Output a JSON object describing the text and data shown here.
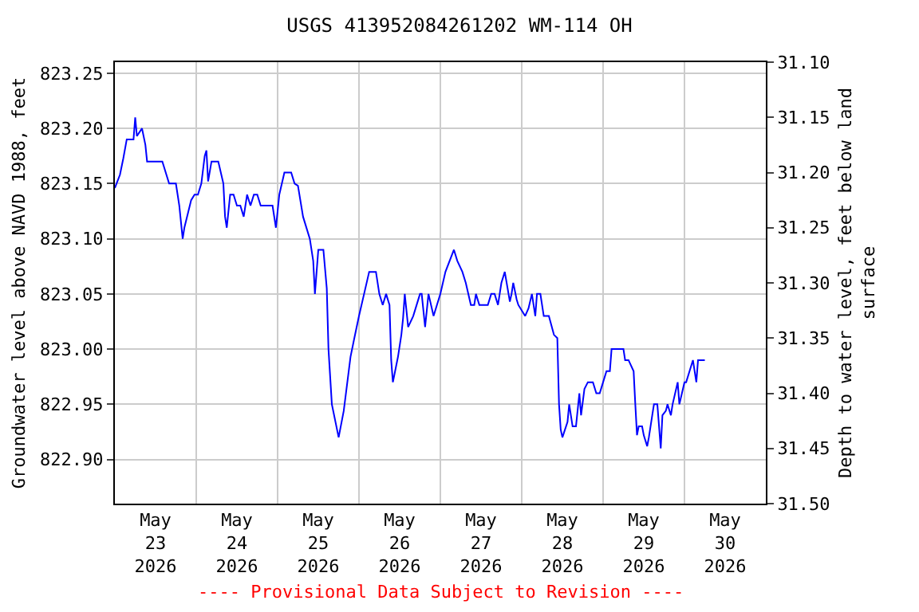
{
  "chart_data": {
    "type": "line",
    "title": "USGS 413952084261202 WM-114 OH",
    "ylabel": "Groundwater level above NAVD 1988, feet",
    "y2label": "Depth to water level, feet below land\nsurface",
    "annotations": [
      "---- Provisional Data Subject to Revision ----"
    ],
    "xlim": [
      "2026-05-23",
      "2026-05-31"
    ],
    "xticks": [
      {
        "value": "2026-05-23T12:00",
        "label": "May\n23\n2026"
      },
      {
        "value": "2026-05-24T12:00",
        "label": "May\n24\n2026"
      },
      {
        "value": "2026-05-25T12:00",
        "label": "May\n25\n2026"
      },
      {
        "value": "2026-05-26T12:00",
        "label": "May\n26\n2026"
      },
      {
        "value": "2026-05-27T12:00",
        "label": "May\n27\n2026"
      },
      {
        "value": "2026-05-28T12:00",
        "label": "May\n28\n2026"
      },
      {
        "value": "2026-05-29T12:00",
        "label": "May\n29\n2026"
      },
      {
        "value": "2026-05-30T12:00",
        "label": "May\n30\n2026"
      },
      {
        "value": "2026-05-24",
        "label": null
      },
      {
        "value": "2026-05-25",
        "label": null
      },
      {
        "value": "2026-05-26",
        "label": null
      },
      {
        "value": "2026-05-27",
        "label": null
      },
      {
        "value": "2026-05-28",
        "label": null
      },
      {
        "value": "2026-05-29",
        "label": null
      },
      {
        "value": "2026-05-30",
        "label": null
      }
    ],
    "ylim": [
      822.86,
      823.26
    ],
    "yticks": [
      {
        "value": 822.9,
        "label": "822.90"
      },
      {
        "value": 822.95,
        "label": "822.95"
      },
      {
        "value": 823.0,
        "label": "823.00"
      },
      {
        "value": 823.05,
        "label": "823.05"
      },
      {
        "value": 823.1,
        "label": "823.10"
      },
      {
        "value": 823.15,
        "label": "823.15"
      },
      {
        "value": 823.2,
        "label": "823.20"
      },
      {
        "value": 823.25,
        "label": "823.25"
      }
    ],
    "y2lim": [
      31.5,
      31.1
    ],
    "y2ticks": [
      {
        "value": 31.1,
        "label": "31.10"
      },
      {
        "value": 31.15,
        "label": "31.15"
      },
      {
        "value": 31.2,
        "label": "31.20"
      },
      {
        "value": 31.25,
        "label": "31.25"
      },
      {
        "value": 31.3,
        "label": "31.30"
      },
      {
        "value": 31.35,
        "label": "31.35"
      },
      {
        "value": 31.4,
        "label": "31.40"
      },
      {
        "value": 31.45,
        "label": "31.45"
      },
      {
        "value": 31.5,
        "label": "31.50"
      }
    ],
    "grid": true,
    "series": [
      {
        "color": "#0000ff",
        "x": [
          "2026-05-23T00:00",
          "2026-05-23T01:30",
          "2026-05-23T02:30",
          "2026-05-23T03:30",
          "2026-05-23T05:00",
          "2026-05-23T05:30",
          "2026-05-23T06:00",
          "2026-05-23T06:30",
          "2026-05-23T08:00",
          "2026-05-23T09:00",
          "2026-05-23T09:30",
          "2026-05-23T14:00",
          "2026-05-23T16:00",
          "2026-05-23T18:00",
          "2026-05-23T19:00",
          "2026-05-23T20:00",
          "2026-05-23T20:30",
          "2026-05-23T22:30",
          "2026-05-23T23:30",
          "2026-05-24T00:30",
          "2026-05-24T01:30",
          "2026-05-24T02:30",
          "2026-05-24T03:00",
          "2026-05-24T03:30",
          "2026-05-24T04:30",
          "2026-05-24T06:30",
          "2026-05-24T08:00",
          "2026-05-24T08:30",
          "2026-05-24T09:00",
          "2026-05-24T10:00",
          "2026-05-24T11:00",
          "2026-05-24T12:00",
          "2026-05-24T13:00",
          "2026-05-24T14:00",
          "2026-05-24T15:00",
          "2026-05-24T16:00",
          "2026-05-24T17:00",
          "2026-05-24T18:00",
          "2026-05-24T19:00",
          "2026-05-24T22:30",
          "2026-05-24T23:30",
          "2026-05-25T00:30",
          "2026-05-25T02:00",
          "2026-05-25T04:00",
          "2026-05-25T05:00",
          "2026-05-25T06:00",
          "2026-05-25T07:30",
          "2026-05-25T09:30",
          "2026-05-25T10:30",
          "2026-05-25T11:00",
          "2026-05-25T12:00",
          "2026-05-25T13:30",
          "2026-05-25T14:30",
          "2026-05-25T15:00",
          "2026-05-25T16:00",
          "2026-05-25T18:00",
          "2026-05-25T19:30",
          "2026-05-25T21:30",
          "2026-05-25T22:30",
          "2026-05-26T00:00",
          "2026-05-26T01:30",
          "2026-05-26T03:00",
          "2026-05-26T05:00",
          "2026-05-26T06:00",
          "2026-05-26T07:00",
          "2026-05-26T08:00",
          "2026-05-26T09:00",
          "2026-05-26T09:30",
          "2026-05-26T10:00",
          "2026-05-26T11:30",
          "2026-05-26T12:30",
          "2026-05-26T13:00",
          "2026-05-26T13:30",
          "2026-05-26T14:30",
          "2026-05-26T16:00",
          "2026-05-26T18:00",
          "2026-05-26T18:30",
          "2026-05-26T19:30",
          "2026-05-26T20:30",
          "2026-05-26T22:00",
          "2026-05-27T00:00",
          "2026-05-27T01:30",
          "2026-05-27T04:00",
          "2026-05-27T05:00",
          "2026-05-27T06:30",
          "2026-05-27T07:30",
          "2026-05-27T09:00",
          "2026-05-27T10:00",
          "2026-05-27T10:30",
          "2026-05-27T11:30",
          "2026-05-27T14:00",
          "2026-05-27T15:00",
          "2026-05-27T16:00",
          "2026-05-27T17:00",
          "2026-05-27T18:00",
          "2026-05-27T19:00",
          "2026-05-27T20:30",
          "2026-05-27T21:00",
          "2026-05-27T21:30",
          "2026-05-27T22:30",
          "2026-05-27T23:00",
          "2026-05-28T01:00",
          "2026-05-28T02:00",
          "2026-05-28T03:00",
          "2026-05-28T04:00",
          "2026-05-28T04:30",
          "2026-05-28T05:30",
          "2026-05-28T06:30",
          "2026-05-28T08:00",
          "2026-05-28T09:30",
          "2026-05-28T10:30",
          "2026-05-28T11:00",
          "2026-05-28T11:30",
          "2026-05-28T12:00",
          "2026-05-28T13:30",
          "2026-05-28T14:00",
          "2026-05-28T15:00",
          "2026-05-28T16:00",
          "2026-05-28T17:00",
          "2026-05-28T17:30",
          "2026-05-28T18:30",
          "2026-05-28T19:30",
          "2026-05-28T21:00",
          "2026-05-28T22:00",
          "2026-05-28T23:00",
          "2026-05-29T00:00",
          "2026-05-29T01:00",
          "2026-05-29T02:00",
          "2026-05-29T02:30",
          "2026-05-29T03:00",
          "2026-05-29T04:00",
          "2026-05-29T06:00",
          "2026-05-29T06:30",
          "2026-05-29T07:30",
          "2026-05-29T09:00",
          "2026-05-29T09:30",
          "2026-05-29T10:00",
          "2026-05-29T10:30",
          "2026-05-29T11:30",
          "2026-05-29T12:00",
          "2026-05-29T13:00",
          "2026-05-29T13:30",
          "2026-05-29T14:30",
          "2026-05-29T15:00",
          "2026-05-29T16:00",
          "2026-05-29T17:00",
          "2026-05-29T17:30",
          "2026-05-29T18:30",
          "2026-05-29T19:00",
          "2026-05-29T20:00",
          "2026-05-29T20:30",
          "2026-05-29T22:00",
          "2026-05-29T22:30",
          "2026-05-30T00:00",
          "2026-05-30T00:30",
          "2026-05-30T01:30",
          "2026-05-30T02:30",
          "2026-05-30T03:30",
          "2026-05-30T04:00",
          "2026-05-30T05:00",
          "2026-05-30T06:00"
        ],
        "values": [
          823.146,
          823.158,
          823.173,
          823.19,
          823.19,
          823.19,
          823.21,
          823.193,
          823.2,
          823.185,
          823.17,
          823.17,
          823.15,
          823.15,
          823.13,
          823.1,
          823.11,
          823.135,
          823.14,
          823.14,
          823.15,
          823.175,
          823.18,
          823.152,
          823.17,
          823.17,
          823.15,
          823.12,
          823.11,
          823.14,
          823.14,
          823.13,
          823.13,
          823.12,
          823.14,
          823.13,
          823.14,
          823.14,
          823.13,
          823.13,
          823.11,
          823.14,
          823.16,
          823.16,
          823.15,
          823.148,
          823.12,
          823.1,
          823.08,
          823.05,
          823.09,
          823.09,
          823.055,
          823.0,
          822.95,
          822.92,
          822.944,
          822.993,
          823.008,
          823.03,
          823.05,
          823.07,
          823.07,
          823.05,
          823.04,
          823.05,
          823.04,
          822.99,
          822.97,
          822.993,
          823.013,
          823.028,
          823.05,
          823.02,
          823.03,
          823.05,
          823.05,
          823.02,
          823.05,
          823.03,
          823.05,
          823.07,
          823.09,
          823.08,
          823.07,
          823.06,
          823.04,
          823.04,
          823.05,
          823.04,
          823.04,
          823.05,
          823.05,
          823.04,
          823.06,
          823.07,
          823.043,
          823.05,
          823.06,
          823.045,
          823.04,
          823.03,
          823.037,
          823.05,
          823.03,
          823.05,
          823.05,
          823.03,
          823.03,
          823.013,
          823.01,
          822.95,
          822.927,
          822.92,
          822.934,
          822.95,
          822.93,
          822.93,
          822.96,
          822.94,
          822.964,
          822.97,
          822.97,
          822.96,
          822.96,
          822.97,
          822.98,
          822.98,
          823.0,
          823.0,
          823.0,
          823.0,
          822.99,
          822.99,
          822.98,
          822.95,
          822.922,
          822.93,
          822.93,
          822.922,
          822.912,
          822.92,
          822.94,
          822.95,
          822.95,
          822.91,
          822.94,
          822.944,
          822.95,
          822.94,
          822.95,
          822.97,
          822.95,
          822.97,
          822.97,
          822.98,
          822.99,
          822.97,
          822.99,
          822.99,
          822.99
        ]
      }
    ]
  }
}
